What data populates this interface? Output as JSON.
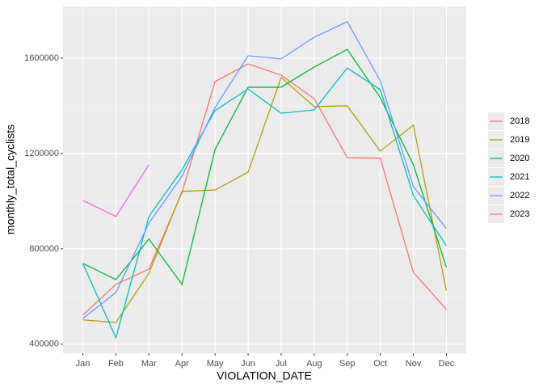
{
  "chart_data": {
    "type": "line",
    "x_label": "VIOLATION_DATE",
    "y_label": "monthly_total_cyclists",
    "categories": [
      "Jan",
      "Feb",
      "Mar",
      "Apr",
      "May",
      "Jun",
      "Jul",
      "Aug",
      "Sep",
      "Oct",
      "Nov",
      "Dec"
    ],
    "ylim": [
      362000,
      1817000
    ],
    "yticks": [
      400000,
      800000,
      1200000,
      1600000
    ],
    "grid": true,
    "legend_position": "right",
    "series": [
      {
        "name": "2018",
        "color": "#F8766D",
        "values": [
          522000,
          651000,
          715000,
          1037000,
          1502000,
          1576000,
          1529000,
          1430000,
          1183000,
          1180000,
          702000,
          546000
        ]
      },
      {
        "name": "2019",
        "color": "#B79F00",
        "values": [
          502000,
          491000,
          698000,
          1041000,
          1047000,
          1122000,
          1519000,
          1397000,
          1400000,
          1210000,
          1319000,
          624000
        ]
      },
      {
        "name": "2020",
        "color": "#00BA38",
        "values": [
          739000,
          671000,
          841000,
          651000,
          1217000,
          1478000,
          1478000,
          1563000,
          1637000,
          1434000,
          1153000,
          722000
        ]
      },
      {
        "name": "2021",
        "color": "#00BFC4",
        "values": [
          739000,
          427000,
          936000,
          1132000,
          1380000,
          1471000,
          1369000,
          1383000,
          1559000,
          1468000,
          1024000,
          813000
        ]
      },
      {
        "name": "2022",
        "color": "#619CFF",
        "values": [
          508000,
          617000,
          908000,
          1105000,
          1393000,
          1610000,
          1597000,
          1688000,
          1753000,
          1505000,
          1061000,
          885000
        ]
      },
      {
        "name": "2023",
        "color": "#F564E3",
        "values": [
          1003000,
          936000,
          1153000,
          null,
          null,
          null,
          null,
          null,
          null,
          null,
          null,
          null
        ]
      }
    ]
  }
}
